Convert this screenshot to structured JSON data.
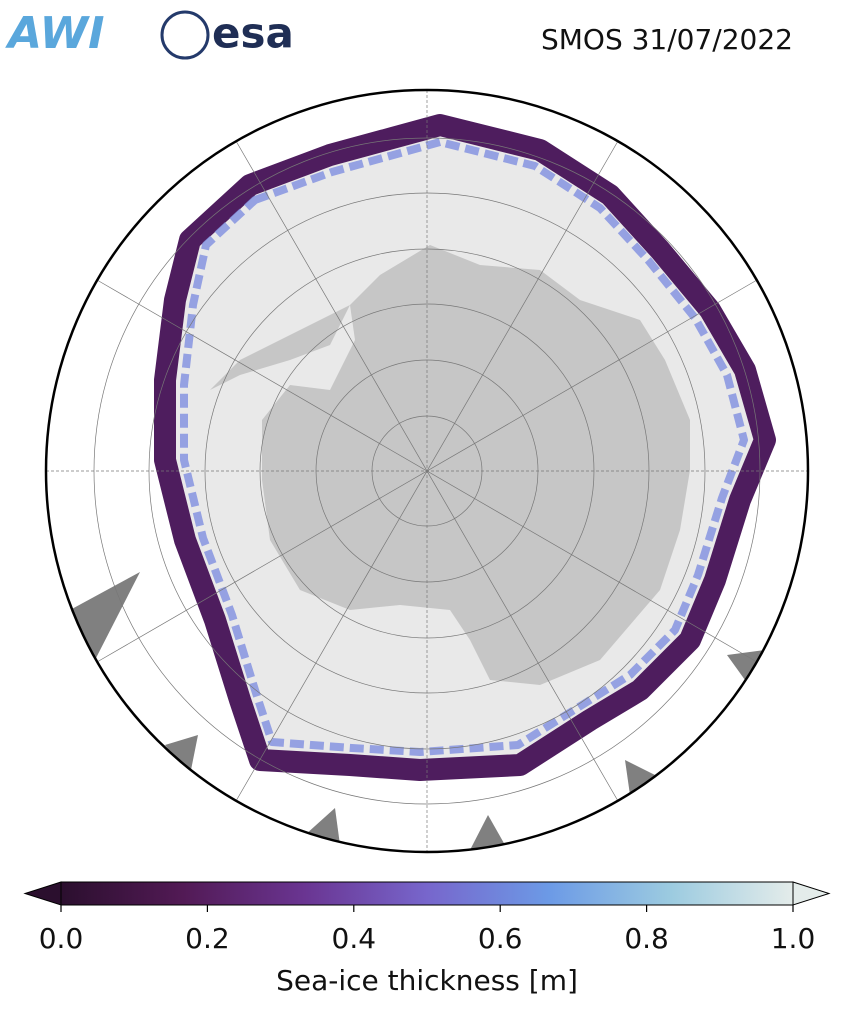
{
  "header": {
    "logos": [
      "AWI",
      "esa"
    ],
    "title": "SMOS 31/07/2022"
  },
  "colorbar": {
    "label": "Sea-ice thickness [m]",
    "lim": [
      0,
      1
    ],
    "ticks": [
      {
        "value": 0,
        "label": "0.0"
      },
      {
        "value": 0.2,
        "label": "0.2"
      },
      {
        "value": 0.4,
        "label": "0.4"
      },
      {
        "value": 0.6,
        "label": "0.6"
      },
      {
        "value": 0.8,
        "label": "0.8"
      },
      {
        "value": 1,
        "label": "1.0"
      }
    ],
    "colors": [
      "#2b0f2e",
      "#521a55",
      "#6a3592",
      "#7766cc",
      "#6c9ae6",
      "#9ccbe0",
      "#e4ecea"
    ]
  }
}
